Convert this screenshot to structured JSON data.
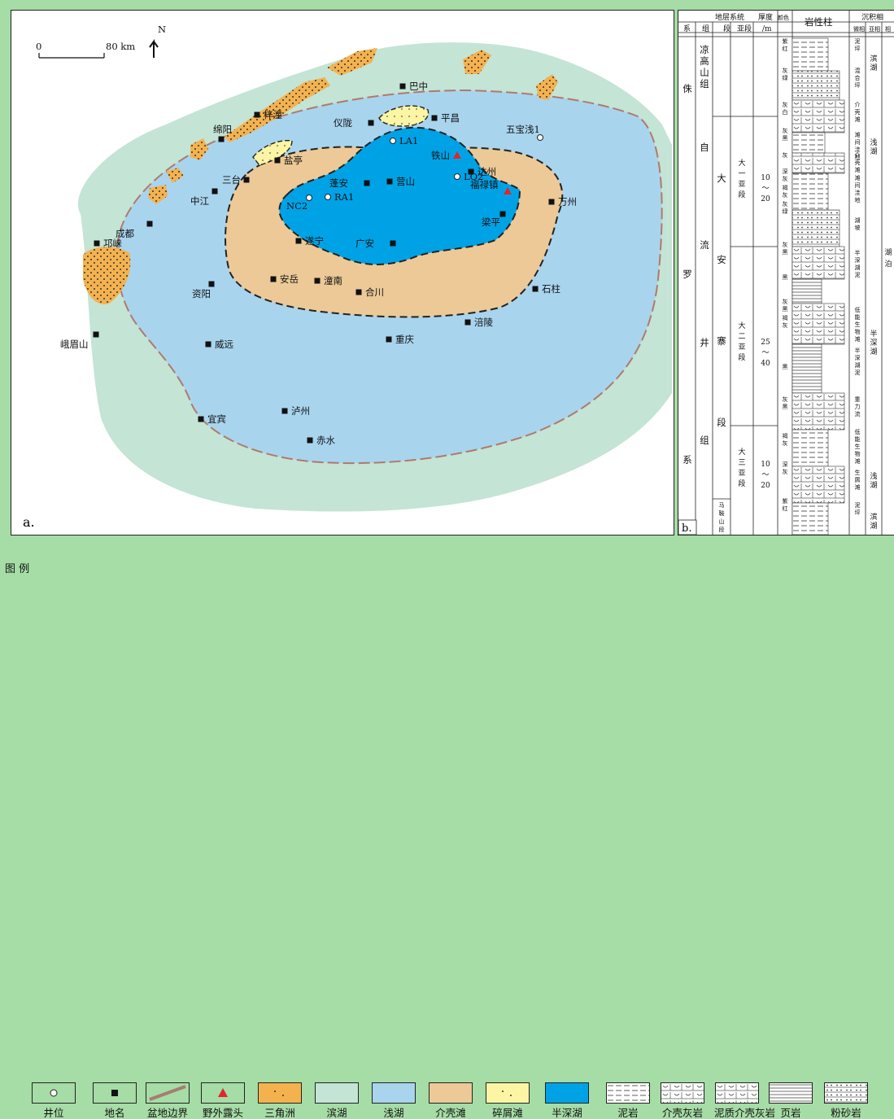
{
  "colors": {
    "frame_bg": "#a6dca6",
    "delta": "#f4b24f",
    "shore_lake": "#c4e4d5",
    "shallow_lake": "#a9d4ee",
    "shell_beach": "#ecc996",
    "clastic_beach": "#fbf5a4",
    "semi_deep_lake": "#00a2e6",
    "basin_boundary": "#b07a6a",
    "outcrop": "#e0262b"
  },
  "map": {
    "north": "N",
    "scale_start": "0",
    "scale_end": "80 km",
    "panel_label": "a.",
    "place_names": [
      "巴中",
      "平昌",
      "仪陇",
      "梓潼",
      "绵阳",
      "盐亭",
      "三台",
      "中江",
      "成都",
      "邛崃",
      "蓬安",
      "营山",
      "达州",
      "万州",
      "梁平",
      "遂宁",
      "广安",
      "安岳",
      "潼南",
      "合川",
      "资阳",
      "石柱",
      "涪陵",
      "重庆",
      "眉山",
      "威远",
      "泸州",
      "宜宾",
      "赤水",
      "峨眉山"
    ],
    "wells": [
      "LA1",
      "LQ2",
      "NC2",
      "RA1",
      "五宝浅1"
    ],
    "outcrops": [
      "铁山",
      "福禄镇"
    ]
  },
  "column": {
    "panel_label": "b.",
    "header": {
      "strat_system": "地层系统",
      "system": "系",
      "group": "组",
      "formation": "段",
      "submember": "亚段",
      "thickness": "厚度",
      "thickness_unit": "/m",
      "color": "颜色",
      "lithology": "岩性柱",
      "facies": "沉积相",
      "microfacies": "微相",
      "subfacies": "亚相",
      "facies_short": "相"
    },
    "system_name": [
      "侏",
      "罗",
      "系"
    ],
    "group_upper": [
      "凉",
      "高",
      "山",
      "组"
    ],
    "group_lower": [
      "自",
      "流",
      "井",
      "组"
    ],
    "member": [
      "大",
      "安",
      "寨",
      "段"
    ],
    "member_ma": [
      "马",
      "鞍",
      "山",
      "段"
    ],
    "submembers": [
      {
        "name": [
          "大",
          "一",
          "亚",
          "段"
        ],
        "thickness": [
          "10",
          "～",
          "20"
        ]
      },
      {
        "name": [
          "大",
          "二",
          "亚",
          "段"
        ],
        "thickness": [
          "25",
          "～",
          "40"
        ]
      },
      {
        "name": [
          "大",
          "三",
          "亚",
          "段"
        ],
        "thickness": [
          "10",
          "～",
          "20"
        ]
      }
    ],
    "colors_col": [
      "紫红",
      "灰绿",
      "灰白",
      "灰黑",
      "灰",
      "深灰",
      "褐灰",
      "灰绿",
      "灰黑",
      "黑",
      "灰黑",
      "褐灰",
      "黑",
      "灰黑",
      "褐灰",
      "深灰",
      "紫红"
    ],
    "microfacies": [
      "泥坪",
      "混合坪",
      "介壳滩",
      "滩间洼地",
      "介壳滩",
      "滩间洼地",
      "湖坡",
      "半深湖泥",
      "低能生物滩",
      "半深湖泥",
      "重力流",
      "低能生物滩",
      "生屑滩",
      "泥坪"
    ],
    "subfacies": [
      "滨湖",
      "浅湖",
      "半深湖",
      "浅湖",
      "滨湖"
    ],
    "facies": [
      "湖",
      "泊"
    ]
  },
  "legend": {
    "title": "图 例",
    "items": [
      "井位",
      "地名",
      "盆地边界",
      "野外露头",
      "三角洲",
      "滨湖",
      "浅湖",
      "介壳滩",
      "碎屑滩",
      "半深湖",
      "泥岩",
      "介壳灰岩",
      "泥质介壳灰岩",
      "页岩",
      "粉砂岩"
    ]
  }
}
